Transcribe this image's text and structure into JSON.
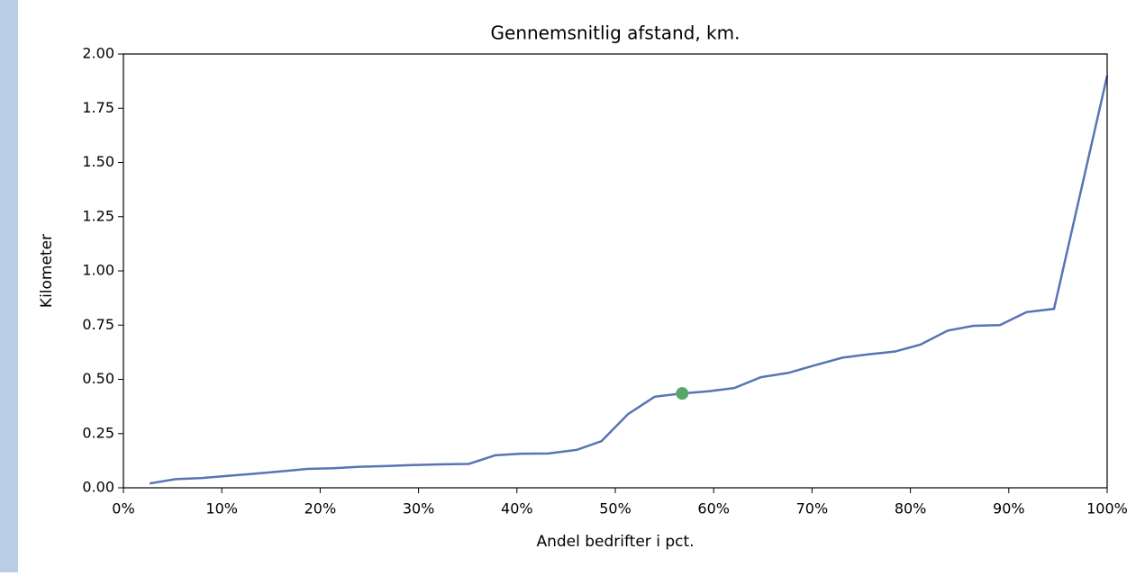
{
  "chart_data": {
    "type": "line",
    "title": "Gennemsnitlig afstand, km.",
    "xlabel": "Andel bedrifter i pct.",
    "ylabel": "Kilometer",
    "x": [
      2.66,
      5.3,
      8.0,
      10.6,
      13.3,
      15.9,
      18.7,
      21.3,
      24.0,
      26.6,
      29.3,
      32.0,
      35.1,
      37.8,
      40.4,
      43.2,
      46.1,
      48.6,
      51.3,
      54.0,
      56.8,
      59.5,
      62.1,
      64.8,
      67.6,
      70.3,
      73.1,
      75.7,
      78.4,
      81.0,
      83.8,
      86.4,
      89.1,
      91.8,
      94.6,
      100
    ],
    "series": [
      {
        "color": "#5874b4",
        "values": [
          0.02,
          0.04,
          0.045,
          0.055,
          0.065,
          0.075,
          0.087,
          0.09,
          0.097,
          0.1,
          0.105,
          0.108,
          0.11,
          0.15,
          0.157,
          0.158,
          0.175,
          0.215,
          0.34,
          0.42,
          0.435,
          0.445,
          0.46,
          0.51,
          0.53,
          0.565,
          0.6,
          0.615,
          0.628,
          0.66,
          0.725,
          0.747,
          0.75,
          0.81,
          0.825,
          1.9
        ]
      }
    ],
    "highlight": {
      "x": 56.8,
      "y": 0.435,
      "color": "#55a868"
    },
    "xlim": [
      0,
      100
    ],
    "ylim": [
      0,
      2
    ],
    "xticks": [
      {
        "value": 0,
        "label": "0%"
      },
      {
        "value": 10,
        "label": "10%"
      },
      {
        "value": 20,
        "label": "20%"
      },
      {
        "value": 30,
        "label": "30%"
      },
      {
        "value": 40,
        "label": "40%"
      },
      {
        "value": 50,
        "label": "50%"
      },
      {
        "value": 60,
        "label": "60%"
      },
      {
        "value": 70,
        "label": "70%"
      },
      {
        "value": 80,
        "label": "80%"
      },
      {
        "value": 90,
        "label": "90%"
      },
      {
        "value": 100,
        "label": "100%"
      }
    ],
    "yticks": [
      {
        "value": 0,
        "label": "0.00"
      },
      {
        "value": 0.25,
        "label": "0.25"
      },
      {
        "value": 0.5,
        "label": "0.50"
      },
      {
        "value": 0.75,
        "label": "0.75"
      },
      {
        "value": 1,
        "label": "1.00"
      },
      {
        "value": 1.25,
        "label": "1.25"
      },
      {
        "value": 1.5,
        "label": "1.50"
      },
      {
        "value": 1.75,
        "label": "1.75"
      },
      {
        "value": 2,
        "label": "2.00"
      }
    ]
  }
}
